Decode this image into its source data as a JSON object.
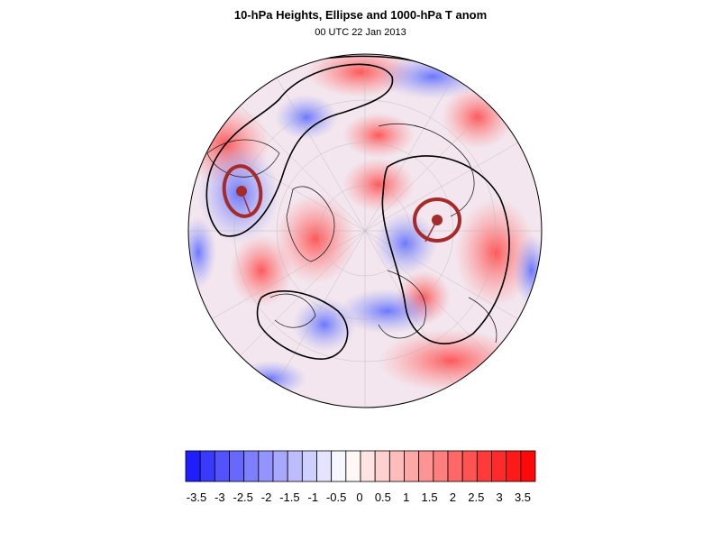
{
  "header": {
    "title": "10-hPa Heights, Ellipse and 1000-hPa T anom",
    "subtitle": "00 UTC 22 Jan 2013"
  },
  "map": {
    "projection": "orthographic polar (north pole view)",
    "field": "1000-hPa T anom",
    "contour_color": "#000000",
    "ellipse_color": "#a52a2a",
    "warm_color": "#ff0000",
    "cold_color": "#0000ff"
  },
  "colorbar": {
    "tick_labels": [
      "-3.5",
      "-3",
      "-2.5",
      "-2",
      "-1.5",
      "-1",
      "-0.5",
      "0",
      "0.5",
      "1",
      "1.5",
      "2",
      "2.5",
      "3",
      "3.5"
    ],
    "colors": [
      "#1e1eff",
      "#3a3aff",
      "#5252ff",
      "#6868ff",
      "#7e7eff",
      "#9494ff",
      "#a8a8ff",
      "#bcbcff",
      "#d0d0ff",
      "#e4e4ff",
      "#f6f6ff",
      "#fff6f6",
      "#ffe4e4",
      "#ffd0d0",
      "#ffbcbc",
      "#ffa8a8",
      "#ff9494",
      "#ff7e7e",
      "#ff6868",
      "#ff5252",
      "#ff3a3a",
      "#ff2a2a",
      "#ff1a1a",
      "#ff0a0a"
    ]
  }
}
